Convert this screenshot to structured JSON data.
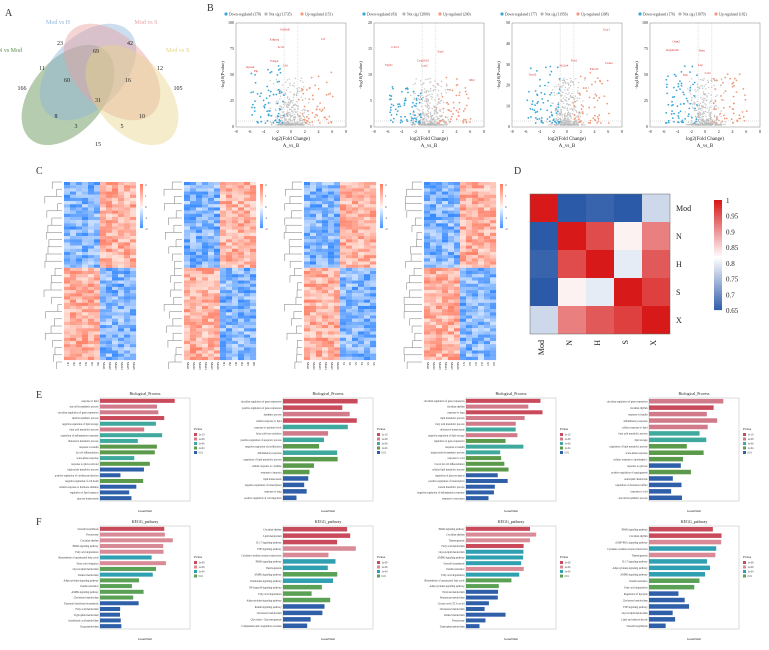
{
  "panel_labels": {
    "a": "A",
    "b": "B",
    "c": "C",
    "d": "D",
    "e": "E",
    "f": "F"
  },
  "venn": {
    "sets": [
      "N vs Mod",
      "Mod vs H",
      "Mod vs S",
      "Mod vs X"
    ],
    "colors": [
      "#5b8f4e",
      "#8fb4dc",
      "#e9a0a0",
      "#e6d48a"
    ],
    "counts": [
      "166",
      "23",
      "42",
      "105",
      "11",
      "69",
      "12",
      "60",
      "16",
      "31",
      "8",
      "10",
      "3",
      "5",
      "15"
    ]
  },
  "volcano": {
    "legend": [
      "Down-regulated",
      "Not sig",
      "Up-regulated"
    ],
    "legend_counts": [
      [
        "(378)",
        "(11735)",
        "(151)"
      ],
      [
        "(83)",
        "(12800)",
        "(200)"
      ],
      [
        "(177)",
        "(11956)",
        "(308)"
      ],
      [
        "(176)",
        "(11870)",
        "(102)"
      ]
    ],
    "ylabel": "-log10(Pvalue)",
    "xlabel": "log2(Fold Change)",
    "xsub": "A_vs_B",
    "xticks": [
      "-8",
      "-6",
      "-4",
      "-2",
      "0",
      "2",
      "4",
      "6",
      "8"
    ],
    "yticks": [
      [
        "0",
        "25",
        "50",
        "75",
        "100"
      ],
      [
        "0",
        "5",
        "10",
        "15",
        "20"
      ],
      [
        "0",
        "10",
        "20",
        "30",
        "40",
        "50"
      ],
      [
        "0",
        "25",
        "50",
        "75",
        "100"
      ]
    ],
    "colors": {
      "down": "#3aa7d8",
      "ns": "#b8b8b8",
      "up": "#f19b7c"
    },
    "annotations": [
      [
        "Cfd",
        "Ltf",
        "Adipoq",
        "Fabp4",
        "Scd1",
        "Hp",
        "Apoa4",
        "S100a8"
      ],
      [
        "Lcn2",
        "Cyp2b10",
        "Saa3",
        "Fgf21",
        "Mt2",
        "Cxcl1"
      ],
      [
        "Slc2a4",
        "Ucp1",
        "Cidea",
        "Elovl3",
        "Pck1",
        "Acot2"
      ],
      [
        "Lep",
        "Retn",
        "Il1b",
        "Ccl2",
        "Orm2",
        "Serpina3n"
      ]
    ]
  },
  "heatmaps": {
    "labels": [
      [
        "N1",
        "N2",
        "N3",
        "N4",
        "N5",
        "N6",
        "Mod1",
        "Mod2",
        "Mod3",
        "Mod4",
        "Mod5",
        "Mod6"
      ],
      [
        "Mod1",
        "Mod2",
        "Mod3",
        "Mod4",
        "Mod5",
        "Mod6",
        "H1",
        "H2",
        "H3",
        "H4",
        "H5",
        "H6"
      ],
      [
        "Mod1",
        "Mod2",
        "Mod3",
        "Mod4",
        "Mod5",
        "Mod6",
        "S1",
        "S2",
        "S3",
        "S4",
        "S5",
        "S6"
      ],
      [
        "Mod1",
        "Mod2",
        "Mod3",
        "Mod4",
        "Mod5",
        "Mod6",
        "X1",
        "X2",
        "X3",
        "X4",
        "X5",
        "X6"
      ]
    ],
    "scale": [
      "2",
      "1",
      "0",
      "-1",
      "-2"
    ]
  },
  "correlation": {
    "labels": [
      "Mod",
      "N",
      "H",
      "S",
      "X"
    ],
    "matrix": [
      [
        1.0,
        0.65,
        0.66,
        0.65,
        0.78
      ],
      [
        0.65,
        1.0,
        0.96,
        0.83,
        0.92
      ],
      [
        0.66,
        0.96,
        1.0,
        0.8,
        0.95
      ],
      [
        0.65,
        0.83,
        0.8,
        1.0,
        0.97
      ],
      [
        0.78,
        0.92,
        0.95,
        0.97,
        1.0
      ]
    ],
    "legend_ticks": [
      "1",
      "0.95",
      "0.9",
      "0.85",
      "0.8",
      "0.75",
      "0.7",
      "0.65"
    ],
    "colors": {
      "high": "#d7191c",
      "mid": "#ffffff",
      "low": "#2b5aa8"
    }
  },
  "go": {
    "title": "Biological_Process",
    "xlabel": "GeneNum",
    "legend_title": "Pvalue",
    "legend_values": [
      "1e-10",
      "1e-08",
      "1e-06",
      "1e-04",
      "0.01"
    ],
    "terms": [
      [
        "response to lipid",
        "steroid biosynthetic process",
        "circadian regulation of gene expression",
        "lipid biosynthetic process",
        "negative regulation of lipid storage",
        "fatty acid metabolic process",
        "regulation of inflammatory response",
        "cholesterol metabolic process",
        "response to insulin",
        "fat cell differentiation",
        "acute-phase response",
        "response to glucocorticoid",
        "triglyceride metabolic process",
        "positive regulation of cytokine production",
        "negative regulation of cell death",
        "cellular response to hormone stimulus",
        "regulation of lipid transport",
        "glucose homeostasis"
      ],
      [
        "circadian regulation of gene expression",
        "positive regulation of gene expression",
        "rhythmic process",
        "cellular response to lipid",
        "response to nutrient levels",
        "fatty acid beta-oxidation",
        "positive regulation of apoptotic process",
        "negative regulation of proliferation",
        "inflammatory response",
        "regulation of lipid metabolic process",
        "cellular response to cytokine",
        "response to hypoxia",
        "lipid homeostasis",
        "negative regulation of transcription",
        "response to drug",
        "positive regulation of cell migration"
      ],
      [
        "circadian regulation of gene expression",
        "circadian rhythm",
        "response to drug",
        "lipid metabolic process",
        "fatty acid metabolic process",
        "cholesterol homeostasis",
        "negative regulation of lipid storage",
        "regulation of gene expression",
        "response to insulin",
        "triglyceride biosynthetic process",
        "response to cold",
        "brown fat cell differentiation",
        "cellular lipid metabolic process",
        "regulation of glucose import",
        "positive regulation of transcription",
        "steroid metabolic process",
        "negative regulation of inflammatory response",
        "response to starvation"
      ],
      [
        "circadian regulation of gene expression",
        "circadian rhythm",
        "response to insulin",
        "inflammatory response",
        "cellular response to lipid",
        "fatty acid metabolic process",
        "lipid storage",
        "regulation of lipid metabolic process",
        "acute-phase response",
        "cellular response to interleukin-1",
        "response to glucose",
        "positive regulation of angiogenesis",
        "neutrophil chemotaxis",
        "regulation of cholesterol efflux",
        "response to cold",
        "steroid biosynthetic process"
      ]
    ]
  },
  "kegg": {
    "title": "KEGG_pathway",
    "xlabel": "GeneNum",
    "legend_title": "Pvalue",
    "legend_values": [
      "1e-08",
      "1e-06",
      "1e-04",
      "0.01"
    ],
    "terms": [
      [
        "Steroid biosynthesis",
        "Peroxisome",
        "Circadian rhythm",
        "PPAR signaling pathway",
        "Fatty acid degradation",
        "Biosynthesis of unsaturated fatty acids",
        "Fatty acid elongation",
        "Glycerolipid metabolism",
        "Retinol metabolism",
        "Adipocytokine signaling pathway",
        "Insulin resistance",
        "AMPK signaling pathway",
        "Cholesterol metabolism",
        "Terpenoid backbone biosynthesis",
        "Fatty acid metabolism",
        "Tryptophan metabolism",
        "Arachidonic acid metabolism",
        "Drug metabolism"
      ],
      [
        "Circadian rhythm",
        "Lipid metabolism",
        "IL-17 signaling pathway",
        "TNF signaling pathway",
        "Cytokine-cytokine receptor interaction",
        "PPAR signaling pathway",
        "Thermogenesis",
        "AMPK signaling pathway",
        "Chemokine signaling pathway",
        "NF-kappa B signaling pathway",
        "Fatty acid degradation",
        "Adipocytokine signaling pathway",
        "Insulin signaling pathway",
        "Cholesterol metabolism",
        "Glycolysis / Gluconeogenesis",
        "Complement and coagulation cascades"
      ],
      [
        "PPAR signaling pathway",
        "Circadian rhythm",
        "Thermogenesis",
        "Fatty acid metabolism",
        "Glycerolipid metabolism",
        "AMPK signaling pathway",
        "Steroid biosynthesis",
        "Insulin resistance",
        "Fatty acid degradation",
        "Biosynthesis of unsaturated fatty acids",
        "Adipocytokine signaling pathway",
        "Pyruvate metabolism",
        "Propanoate metabolism",
        "Citrate cycle (TCA cycle)",
        "Cholesterol metabolism",
        "Retinol metabolism",
        "Peroxisome",
        "Tryptophan metabolism"
      ],
      [
        "PPAR signaling pathway",
        "Circadian rhythm",
        "cGMP-PKG signaling pathway",
        "Cytokine-cytokine receptor interaction",
        "Thermogenesis",
        "IL-17 signaling pathway",
        "Adipocytokine signaling pathway",
        "AMPK signaling pathway",
        "Insulin resistance",
        "Fatty acid degradation",
        "Regulation of lipolysis",
        "Cholesterol metabolism",
        "TNF signaling pathway",
        "Glycerolipid metabolism",
        "Lipid and atherosclerosis",
        "Steroid biosynthesis"
      ]
    ]
  }
}
